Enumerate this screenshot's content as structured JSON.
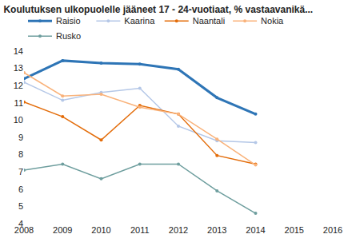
{
  "chart_data": {
    "type": "line",
    "title": "Koulutuksen ulkopuolelle jääneet 17 - 24-vuotiaat, % vastaavanikä...",
    "x": [
      2008,
      2009,
      2010,
      2011,
      2012,
      2013,
      2014
    ],
    "series": [
      {
        "name": "Raisio",
        "color": "#2e75b6",
        "values": [
          12.4,
          13.45,
          13.3,
          13.25,
          12.95,
          11.3,
          10.35
        ]
      },
      {
        "name": "Kaarina",
        "color": "#b4c7e7",
        "values": [
          12.2,
          11.15,
          11.6,
          11.85,
          9.65,
          8.8,
          8.7
        ]
      },
      {
        "name": "Naantali",
        "color": "#e36c09",
        "values": [
          11.05,
          10.2,
          8.85,
          10.85,
          10.35,
          7.95,
          7.45
        ]
      },
      {
        "name": "Nokia",
        "color": "#f9b27a",
        "values": [
          12.75,
          11.4,
          11.5,
          10.75,
          10.35,
          8.9,
          7.4
        ]
      },
      {
        "name": "Rusko",
        "color": "#6e9e9e",
        "values": [
          7.1,
          7.45,
          6.6,
          7.45,
          7.45,
          5.9,
          4.6
        ]
      }
    ],
    "xlim": [
      2008,
      2016
    ],
    "xticks": [
      2008,
      2009,
      2010,
      2011,
      2012,
      2013,
      2014,
      2015,
      2016
    ],
    "ylim": [
      4,
      14
    ],
    "yticks": [
      4,
      5,
      6,
      7,
      8,
      9,
      10,
      11,
      12,
      13,
      14
    ],
    "grid": false,
    "legend": "top",
    "marker": "circle"
  }
}
